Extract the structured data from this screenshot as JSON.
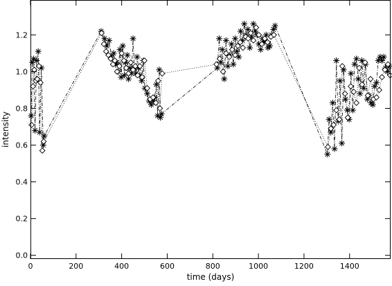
{
  "chart_data": {
    "type": "scatter",
    "title": "",
    "xlabel": "time (days)",
    "ylabel": "intensity",
    "xlim": [
      0,
      1580
    ],
    "ylim": [
      -0.02,
      1.39
    ],
    "xticks": [
      0,
      200,
      400,
      600,
      800,
      1000,
      1200,
      1400
    ],
    "yticks": [
      0.0,
      0.2,
      0.4,
      0.6,
      0.8,
      1.0,
      1.2
    ],
    "xtick_labels": [
      "0",
      "200",
      "400",
      "600",
      "800",
      "1000",
      "1200",
      "1400"
    ],
    "ytick_labels": [
      "0.0",
      "0.2",
      "0.4",
      "0.6",
      "0.8",
      "1.0",
      "1.2"
    ],
    "grid": false,
    "legend": "none",
    "series": [
      {
        "marker": "asterisk",
        "line": "dash-dot",
        "x": [
          3,
          8,
          14,
          20,
          27,
          34,
          40,
          48,
          56,
          60,
          310,
          325,
          335,
          345,
          355,
          365,
          372,
          378,
          385,
          392,
          398,
          405,
          412,
          418,
          425,
          430,
          437,
          443,
          450,
          456,
          462,
          468,
          474,
          480,
          488,
          495,
          502,
          512,
          520,
          530,
          538,
          545,
          552,
          558,
          565,
          570,
          575,
          820,
          828,
          835,
          842,
          850,
          858,
          866,
          874,
          882,
          890,
          898,
          906,
          914,
          922,
          930,
          938,
          946,
          954,
          962,
          970,
          978,
          986,
          994,
          1002,
          1010,
          1018,
          1026,
          1034,
          1042,
          1050,
          1058,
          1066,
          1073,
          1303,
          1310,
          1318,
          1326,
          1334,
          1342,
          1350,
          1358,
          1366,
          1374,
          1382,
          1390,
          1398,
          1406,
          1414,
          1422,
          1430,
          1438,
          1446,
          1454,
          1462,
          1470,
          1478,
          1486,
          1494,
          1502,
          1510,
          1518,
          1526,
          1534,
          1542,
          1550,
          1558,
          1566,
          1574
        ],
        "y": [
          0.76,
          1.05,
          1.07,
          0.68,
          1.06,
          1.11,
          0.67,
          1.02,
          0.6,
          0.65,
          1.22,
          1.18,
          1.14,
          1.17,
          1.08,
          1.1,
          1.04,
          1.05,
          1.0,
          1.12,
          0.97,
          1.14,
          0.98,
          1.05,
          1.09,
          0.96,
          1.02,
          0.99,
          1.18,
          1.02,
          0.99,
          1.08,
          1.02,
          0.98,
          0.95,
          1.06,
          0.91,
          0.88,
          0.84,
          0.82,
          0.84,
          0.86,
          0.93,
          0.76,
          1.01,
          0.75,
          0.77,
          1.02,
          1.18,
          1.05,
          1.12,
          0.96,
          1.17,
          1.03,
          1.09,
          1.15,
          1.04,
          1.18,
          1.11,
          1.08,
          1.22,
          1.17,
          1.26,
          1.2,
          1.23,
          1.13,
          1.19,
          1.26,
          1.22,
          1.2,
          1.15,
          1.12,
          1.18,
          1.16,
          1.2,
          1.13,
          1.14,
          1.2,
          1.23,
          1.25,
          0.55,
          0.74,
          0.67,
          0.83,
          0.58,
          1.06,
          0.73,
          0.95,
          0.61,
          1.01,
          0.85,
          0.79,
          0.74,
          0.99,
          0.79,
          1.04,
          1.07,
          0.96,
          0.88,
          1.06,
          0.91,
          1.04,
          0.85,
          0.87,
          0.83,
          0.82,
          0.92,
          0.94,
          1.06,
          1.08,
          1.06,
          1.08,
          1.02,
          1.0,
          1.03
        ]
      },
      {
        "marker": "diamond",
        "line": "dotted",
        "x": [
          5,
          11,
          17,
          24,
          30,
          37,
          44,
          52,
          58,
          312,
          322,
          332,
          342,
          352,
          362,
          370,
          380,
          390,
          400,
          410,
          420,
          430,
          440,
          450,
          460,
          470,
          480,
          490,
          500,
          512,
          525,
          538,
          550,
          560,
          568,
          578,
          816,
          830,
          845,
          858,
          872,
          885,
          898,
          910,
          920,
          932,
          944,
          955,
          966,
          978,
          990,
          1002,
          1015,
          1028,
          1040,
          1055,
          1068,
          1305,
          1318,
          1330,
          1342,
          1355,
          1368,
          1380,
          1392,
          1405,
          1418,
          1430,
          1442,
          1455,
          1468,
          1480,
          1492,
          1505,
          1518,
          1530,
          1542,
          1555,
          1568,
          1578
        ],
        "y": [
          0.71,
          0.92,
          1.01,
          0.95,
          0.96,
          1.03,
          0.94,
          0.57,
          0.62,
          1.21,
          1.15,
          1.11,
          1.09,
          1.07,
          1.04,
          1.06,
          1.0,
          1.03,
          1.1,
          1.06,
          1.02,
          0.99,
          1.05,
          1.01,
          1.03,
          0.98,
          1.03,
          0.97,
          1.06,
          0.91,
          0.85,
          0.86,
          0.83,
          0.95,
          0.8,
          0.99,
          1.04,
          1.07,
          1.0,
          1.1,
          1.08,
          1.12,
          1.09,
          1.14,
          1.16,
          1.13,
          1.19,
          1.18,
          1.21,
          1.17,
          1.24,
          1.2,
          1.15,
          1.18,
          1.16,
          1.19,
          1.2,
          0.59,
          0.69,
          0.71,
          0.79,
          0.74,
          1.03,
          0.88,
          0.75,
          0.92,
          0.89,
          0.83,
          1.02,
          0.93,
          1.05,
          0.87,
          0.96,
          0.85,
          0.86,
          0.9,
          0.97,
          1.01,
          1.04,
          0.98
        ]
      }
    ]
  }
}
